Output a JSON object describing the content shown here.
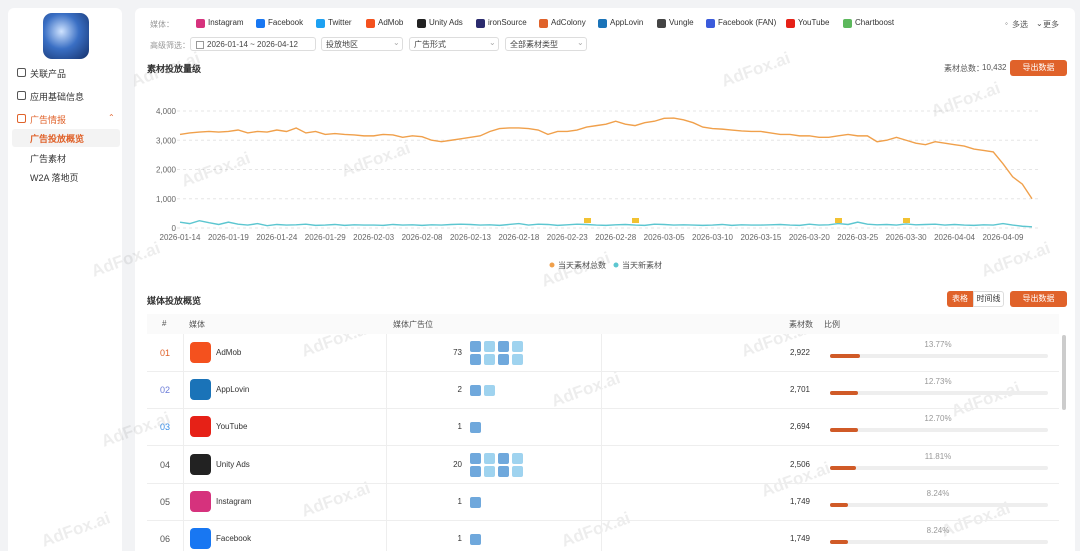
{
  "watermark": "AdFox.ai",
  "sidebar": {
    "menu": [
      "关联产品",
      "应用基础信息",
      "广告情报"
    ],
    "submenu": [
      "广告投放概览",
      "广告素材",
      "W2A 落地页"
    ]
  },
  "filters": {
    "media_label": "媒体：",
    "media": [
      "Instagram",
      "Facebook",
      "Twitter",
      "AdMob",
      "Unity Ads",
      "ironSource",
      "AdColony",
      "AppLovin",
      "Vungle",
      "Facebook (FAN)",
      "YouTube",
      "Chartboost"
    ],
    "multi": "多选",
    "more": "更多",
    "advanced_label": "高级筛选：",
    "selects": [
      "2026-01-14 ~ 2026-04-12",
      "投放地区",
      "广告形式",
      "全部素材类型"
    ]
  },
  "volume": {
    "title": "素材投放量级",
    "total_label": "素材总数：",
    "total": "10,432",
    "export": "导出数据"
  },
  "chart_data": {
    "type": "line",
    "categories": [
      "2026-01-14",
      null,
      null,
      null,
      null,
      "2026-01-19",
      null,
      null,
      null,
      null,
      "2026-01-24",
      null,
      null,
      null,
      null,
      "2026-01-29",
      null,
      null,
      null,
      null,
      "2026-02-03",
      null,
      null,
      null,
      null,
      "2026-02-08",
      null,
      null,
      null,
      null,
      "2026-02-13",
      null,
      null,
      null,
      null,
      "2026-02-18",
      null,
      null,
      null,
      null,
      "2026-02-23",
      null,
      null,
      null,
      null,
      "2026-02-28",
      null,
      null,
      null,
      null,
      "2026-03-05",
      null,
      null,
      null,
      null,
      "2026-03-10",
      null,
      null,
      null,
      null,
      "2026-03-15",
      null,
      null,
      null,
      null,
      "2026-03-20",
      null,
      null,
      null,
      null,
      "2026-03-25",
      null,
      null,
      null,
      null,
      "2026-03-30",
      null,
      null,
      null,
      null,
      "2026-04-04",
      null,
      null,
      null,
      null,
      "2026-04-09",
      null,
      null,
      null
    ],
    "series": [
      {
        "name": "当天素材总数",
        "color": "#f0a04b",
        "values": [
          3200,
          3250,
          3280,
          3300,
          3280,
          3300,
          3350,
          3250,
          3300,
          3280,
          3350,
          3300,
          3420,
          3250,
          3300,
          3200,
          3230,
          3200,
          3180,
          3150,
          3150,
          3200,
          3180,
          3100,
          3150,
          3120,
          3000,
          2950,
          3000,
          3050,
          3100,
          3150,
          3300,
          3400,
          3420,
          3420,
          3400,
          3350,
          3200,
          3300,
          3300,
          3350,
          3450,
          3500,
          3550,
          3650,
          3550,
          3500,
          3600,
          3650,
          3750,
          3760,
          3700,
          3600,
          3450,
          3400,
          3380,
          3350,
          3320,
          3300,
          3300,
          3250,
          3200,
          3200,
          3150,
          3150,
          3100,
          3100,
          3150,
          3200,
          3150,
          3150,
          2950,
          3000,
          3100,
          3000,
          2900,
          2850,
          2950,
          2900,
          2850,
          2800,
          2700,
          2650,
          2600,
          2200,
          1750,
          1500,
          1000
        ]
      },
      {
        "name": "当天新素材",
        "color": "#5cc6d0",
        "values": [
          200,
          150,
          250,
          180,
          120,
          200,
          130,
          100,
          150,
          80,
          120,
          100,
          110,
          130,
          90,
          100,
          120,
          90,
          110,
          100,
          100,
          90,
          120,
          100,
          110,
          90,
          110,
          100,
          120,
          130,
          120,
          100,
          110,
          90,
          120,
          150,
          100,
          130,
          120,
          90,
          110,
          130,
          120,
          100,
          90,
          110,
          120,
          100,
          90,
          130,
          120,
          100,
          110,
          100,
          90,
          100,
          120,
          90,
          110,
          100,
          100,
          110,
          120,
          100,
          90,
          130,
          100,
          110,
          150,
          120,
          200,
          130,
          110,
          120,
          100,
          140,
          110,
          120,
          130,
          100,
          120,
          100,
          90,
          110,
          100,
          150,
          100,
          60,
          40
        ]
      }
    ],
    "ylim": [
      0,
      4000
    ],
    "yticks": [
      0,
      {
        "value": 1000,
        "label": "1,000"
      },
      {
        "value": 2000,
        "label": "2,000"
      },
      {
        "value": 3000,
        "label": "3,000"
      },
      {
        "value": 4000,
        "label": "4,000"
      }
    ],
    "grid": true,
    "legend": "bottom"
  },
  "overview": {
    "title": "媒体投放概览",
    "tabs": [
      "表格",
      "时间线"
    ],
    "export": "导出数据",
    "headers": [
      "#",
      "媒体",
      "媒体广告位",
      "素材数",
      "比例"
    ],
    "rows": [
      {
        "rank": "01",
        "media": "AdMob",
        "placements": "73",
        "count": "2,922",
        "share": 13.77,
        "share_label": "13.77%"
      },
      {
        "rank": "02",
        "media": "AppLovin",
        "placements": "2",
        "count": "2,701",
        "share": 12.73,
        "share_label": "12.73%"
      },
      {
        "rank": "03",
        "media": "YouTube",
        "placements": "1",
        "count": "2,694",
        "share": 12.7,
        "share_label": "12.70%"
      },
      {
        "rank": "04",
        "media": "Unity Ads",
        "placements": "20",
        "count": "2,506",
        "share": 11.81,
        "share_label": "11.81%"
      },
      {
        "rank": "05",
        "media": "Instagram",
        "placements": "1",
        "count": "1,749",
        "share": 8.24,
        "share_label": "8.24%"
      },
      {
        "rank": "06",
        "media": "Facebook",
        "placements": "1",
        "count": "1,749",
        "share": 8.24,
        "share_label": "8.24%"
      }
    ]
  }
}
